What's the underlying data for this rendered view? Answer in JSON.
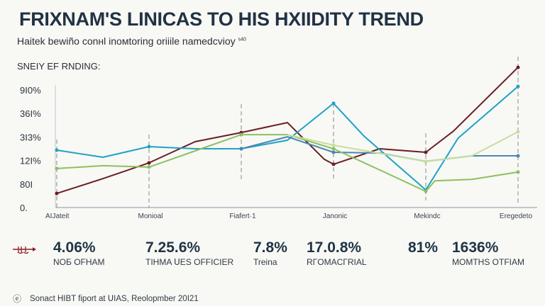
{
  "header": {
    "title": "FRIXNAM'S LINICAS TO HIS HXIIDITY TREND",
    "subtitle": "Haitek bewiño conнl inoмtoring oriiile namedcvioy",
    "subtitle_sup": "ꜱ40",
    "section_label": "SNEIY EF RNDING:"
  },
  "chart_data": {
    "type": "line",
    "title": "",
    "xlabel": "",
    "ylabel": "",
    "categories": [
      "AIJateit",
      "Moniоal",
      "Fiafert·1",
      "Janonic",
      "Mekindc",
      "Eregedeto"
    ],
    "y_tick_labels": [
      "0.",
      "80Ι",
      "12Ι%",
      "3Ι3%",
      "36Ι%",
      "9Ι0%"
    ],
    "xlim": [
      0,
      5
    ],
    "ylim": [
      0,
      6
    ],
    "grid": false,
    "legend": "none",
    "category_markers": "dashed vertical lines",
    "series": [
      {
        "color": "#6b1e22",
        "x": [
          0,
          0.5,
          1,
          1.5,
          2,
          2.5,
          2.9,
          3,
          3.5,
          4,
          4.3,
          5
        ],
        "y": [
          0.6,
          1.23,
          1.9,
          2.8,
          3.19,
          3.61,
          2.05,
          1.84,
          2.5,
          2.35,
          3.25,
          5.96
        ]
      },
      {
        "color": "#1fa2c6",
        "x": [
          0,
          0.5,
          1,
          1.5,
          2,
          2.5,
          3,
          3.33,
          4,
          4.35,
          5
        ],
        "y": [
          2.44,
          2.14,
          2.59,
          2.5,
          2.5,
          2.86,
          4.43,
          3.04,
          0.75,
          2.95,
          5.15
        ]
      },
      {
        "color": "#4a87b3",
        "x": [
          2,
          2.5,
          3,
          3.5,
          4,
          4.5,
          5
        ],
        "y": [
          2.5,
          3.01,
          2.35,
          2.32,
          1.96,
          2.2,
          2.2
        ]
      },
      {
        "color": "#8cc060",
        "x": [
          0,
          0.5,
          1,
          1.5,
          2,
          2.5,
          3,
          3.5,
          4,
          4.1,
          4.5,
          5
        ],
        "y": [
          1.66,
          1.78,
          1.72,
          2.41,
          3.1,
          3.1,
          2.5,
          1.6,
          0.69,
          1.14,
          1.2,
          1.51
        ]
      },
      {
        "color": "#c4df9c",
        "x": [
          2.5,
          3,
          4,
          4.5,
          5
        ],
        "y": [
          3.1,
          2.65,
          1.96,
          2.2,
          3.22
        ]
      }
    ]
  },
  "stats": [
    {
      "value": "4.06%",
      "label": "NOБ OFHAM"
    },
    {
      "value": "7.25.6%",
      "label": "TIHMA ᑌES OFFICIER"
    },
    {
      "value": "7.8%",
      "label": "Treina"
    },
    {
      "value": "17.0.8%",
      "label": "RΓOMACΓRIAL"
    },
    {
      "value": "81%",
      "label": ""
    },
    {
      "value": "1636%",
      "label": "MOMTHS OTFIAM"
    }
  ],
  "stat_icon": "red-arrow-scale-icon",
  "stat_icon_color": "#8a1e22",
  "footer": {
    "icon": "copyright-circle-icon",
    "icon_glyph": "ⓔ",
    "text": "Sonact HIBT fiport at ᑌIAS, Reolopmber 20Ι21"
  }
}
